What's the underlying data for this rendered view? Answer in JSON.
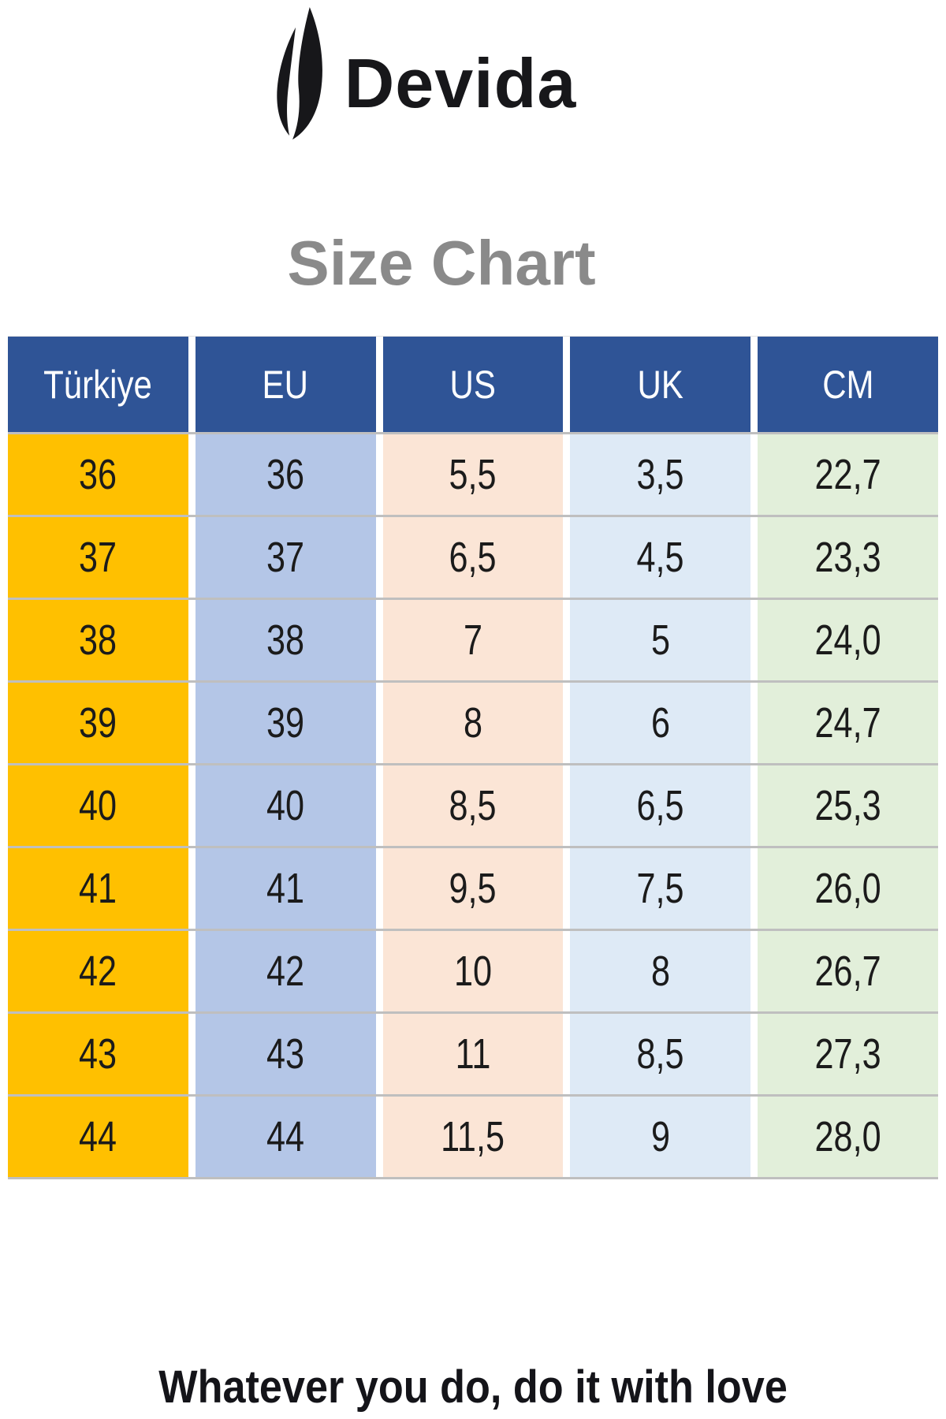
{
  "logo": {
    "brand": "Devida",
    "icon": "flame-icon",
    "color": "#17171a"
  },
  "title": "Size Chart",
  "tagline": "Whatever you do, do it with love",
  "colors": {
    "header_bg": "#2F5496",
    "header_text": "#FFFFFF",
    "row_divider": "#BFBFBF",
    "title_gray": "#8A8A8A",
    "body_text": "#1B1B1B",
    "tagline_text": "#141419",
    "column_turkiye": "#FFC000",
    "column_eu": "#B4C6E7",
    "column_us": "#FBE5D6",
    "column_uk": "#DEEAF6",
    "column_cm": "#E2EFDA"
  },
  "chart_data": {
    "type": "table",
    "title": "Size Chart",
    "columns": [
      {
        "label": "Türkiye",
        "color": "#FFC000"
      },
      {
        "label": "EU",
        "color": "#B4C6E7"
      },
      {
        "label": "US",
        "color": "#FBE5D6"
      },
      {
        "label": "UK",
        "color": "#DEEAF6"
      },
      {
        "label": "CM",
        "color": "#E2EFDA"
      }
    ],
    "rows": [
      [
        "36",
        "36",
        "5,5",
        "3,5",
        "22,7"
      ],
      [
        "37",
        "37",
        "6,5",
        "4,5",
        "23,3"
      ],
      [
        "38",
        "38",
        "7",
        "5",
        "24,0"
      ],
      [
        "39",
        "39",
        "8",
        "6",
        "24,7"
      ],
      [
        "40",
        "40",
        "8,5",
        "6,5",
        "25,3"
      ],
      [
        "41",
        "41",
        "9,5",
        "7,5",
        "26,0"
      ],
      [
        "42",
        "42",
        "10",
        "8",
        "26,7"
      ],
      [
        "43",
        "43",
        "11",
        "8,5",
        "27,3"
      ],
      [
        "44",
        "44",
        "11,5",
        "9",
        "28,0"
      ]
    ]
  }
}
